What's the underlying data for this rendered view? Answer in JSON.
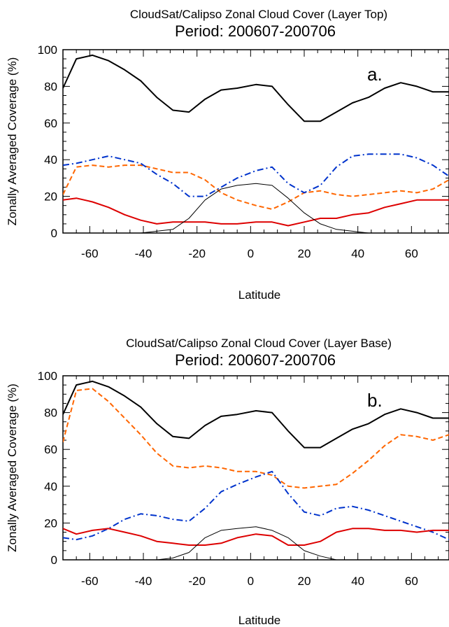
{
  "chart_data": [
    {
      "type": "line",
      "title": "CloudSat/Calipso Zonal Cloud Cover (Layer Top)",
      "subtitle": "Period: 200607-200706",
      "panel_label": "a.",
      "xlabel": "Latitude",
      "ylabel": "Zonally Averaged Coverage (%)",
      "xlim": [
        -70,
        74
      ],
      "ylim": [
        0,
        100
      ],
      "xticks": [
        -60,
        -40,
        -20,
        0,
        20,
        40,
        60
      ],
      "yticks": [
        0,
        20,
        40,
        60,
        80,
        100
      ],
      "legend": "none",
      "series": [
        {
          "color": "#000000",
          "style": "solid",
          "width": 2,
          "x": [
            -70,
            -65,
            -59,
            -53,
            -47,
            -41,
            -35,
            -29,
            -23,
            -17,
            -11,
            -5,
            2,
            8,
            14,
            20,
            26,
            32,
            38,
            44,
            50,
            56,
            62,
            68,
            74
          ],
          "y": [
            79,
            95,
            97,
            94,
            89,
            83,
            74,
            67,
            66,
            73,
            78,
            79,
            81,
            80,
            70,
            61,
            61,
            66,
            71,
            74,
            79,
            82,
            80,
            77,
            77
          ]
        },
        {
          "color": "#ff6600",
          "style": "dashed",
          "width": 2,
          "x": [
            -70,
            -65,
            -59,
            -53,
            -47,
            -41,
            -35,
            -29,
            -23,
            -17,
            -11,
            -5,
            2,
            8,
            14,
            20,
            26,
            32,
            38,
            44,
            50,
            56,
            62,
            68,
            74
          ],
          "y": [
            21,
            36,
            37,
            36,
            37,
            37,
            35,
            33,
            33,
            29,
            22,
            18,
            15,
            13,
            17,
            22,
            23,
            21,
            20,
            21,
            22,
            23,
            22,
            24,
            29
          ]
        },
        {
          "color": "#0033cc",
          "style": "dashdot",
          "width": 2,
          "x": [
            -70,
            -65,
            -59,
            -53,
            -47,
            -41,
            -35,
            -29,
            -23,
            -17,
            -11,
            -5,
            2,
            8,
            14,
            20,
            26,
            32,
            38,
            44,
            50,
            56,
            62,
            68,
            74
          ],
          "y": [
            37,
            38,
            40,
            42,
            40,
            38,
            32,
            27,
            20,
            20,
            25,
            30,
            34,
            36,
            27,
            22,
            26,
            36,
            42,
            43,
            43,
            43,
            41,
            37,
            31
          ]
        },
        {
          "color": "#dd0000",
          "style": "solid",
          "width": 2,
          "x": [
            -70,
            -65,
            -59,
            -53,
            -47,
            -41,
            -35,
            -29,
            -23,
            -17,
            -11,
            -5,
            2,
            8,
            14,
            20,
            26,
            32,
            38,
            44,
            50,
            56,
            62,
            68,
            74
          ],
          "y": [
            18,
            19,
            17,
            14,
            10,
            7,
            5,
            6,
            6,
            6,
            5,
            5,
            6,
            6,
            4,
            6,
            8,
            8,
            10,
            11,
            14,
            16,
            18,
            18,
            18
          ]
        },
        {
          "color": "#000000",
          "style": "solid",
          "width": 1,
          "x": [
            -70,
            -47,
            -41,
            -35,
            -29,
            -23,
            -17,
            -11,
            -5,
            2,
            8,
            14,
            20,
            26,
            32,
            38,
            44,
            50,
            74
          ],
          "y": [
            0,
            0,
            0,
            1,
            2,
            8,
            18,
            24,
            26,
            27,
            26,
            19,
            11,
            5,
            2,
            1,
            0,
            0,
            0
          ]
        }
      ]
    },
    {
      "type": "line",
      "title": "CloudSat/Calipso Zonal Cloud Cover (Layer Base)",
      "subtitle": "Period: 200607-200706",
      "panel_label": "b.",
      "xlabel": "Latitude",
      "ylabel": "Zonally Averaged Coverage (%)",
      "xlim": [
        -70,
        74
      ],
      "ylim": [
        0,
        100
      ],
      "xticks": [
        -60,
        -40,
        -20,
        0,
        20,
        40,
        60
      ],
      "yticks": [
        0,
        20,
        40,
        60,
        80,
        100
      ],
      "legend": "none",
      "series": [
        {
          "color": "#000000",
          "style": "solid",
          "width": 2,
          "x": [
            -70,
            -65,
            -59,
            -53,
            -47,
            -41,
            -35,
            -29,
            -23,
            -17,
            -11,
            -5,
            2,
            8,
            14,
            20,
            26,
            32,
            38,
            44,
            50,
            56,
            62,
            68,
            74
          ],
          "y": [
            79,
            95,
            97,
            94,
            89,
            83,
            74,
            67,
            66,
            73,
            78,
            79,
            81,
            80,
            70,
            61,
            61,
            66,
            71,
            74,
            79,
            82,
            80,
            77,
            77
          ]
        },
        {
          "color": "#ff6600",
          "style": "dashed",
          "width": 2,
          "x": [
            -70,
            -65,
            -59,
            -53,
            -47,
            -41,
            -35,
            -29,
            -23,
            -17,
            -11,
            -5,
            2,
            8,
            14,
            20,
            26,
            32,
            38,
            44,
            50,
            56,
            62,
            68,
            74
          ],
          "y": [
            64,
            92,
            93,
            86,
            77,
            68,
            58,
            51,
            50,
            51,
            50,
            48,
            48,
            46,
            40,
            39,
            40,
            41,
            47,
            54,
            62,
            68,
            67,
            65,
            68
          ]
        },
        {
          "color": "#0033cc",
          "style": "dashdot",
          "width": 2,
          "x": [
            -70,
            -65,
            -59,
            -53,
            -47,
            -41,
            -35,
            -29,
            -23,
            -17,
            -11,
            -5,
            2,
            8,
            14,
            20,
            26,
            32,
            38,
            44,
            50,
            56,
            62,
            68,
            74
          ],
          "y": [
            12,
            11,
            13,
            17,
            22,
            25,
            24,
            22,
            21,
            28,
            37,
            41,
            45,
            48,
            36,
            26,
            24,
            28,
            29,
            27,
            24,
            21,
            18,
            15,
            11
          ]
        },
        {
          "color": "#dd0000",
          "style": "solid",
          "width": 2,
          "x": [
            -70,
            -65,
            -59,
            -53,
            -47,
            -41,
            -35,
            -29,
            -23,
            -17,
            -11,
            -5,
            2,
            8,
            14,
            20,
            26,
            32,
            38,
            44,
            50,
            56,
            62,
            68,
            74
          ],
          "y": [
            17,
            14,
            16,
            17,
            15,
            13,
            10,
            9,
            8,
            8,
            9,
            12,
            14,
            13,
            8,
            8,
            10,
            15,
            17,
            17,
            16,
            16,
            15,
            16,
            16
          ]
        },
        {
          "color": "#000000",
          "style": "solid",
          "width": 1,
          "x": [
            -70,
            -41,
            -35,
            -29,
            -23,
            -17,
            -11,
            -5,
            2,
            8,
            14,
            20,
            26,
            32,
            38,
            74
          ],
          "y": [
            0,
            0,
            0,
            1,
            4,
            12,
            16,
            17,
            18,
            16,
            12,
            5,
            2,
            0,
            0,
            0
          ]
        }
      ]
    }
  ]
}
